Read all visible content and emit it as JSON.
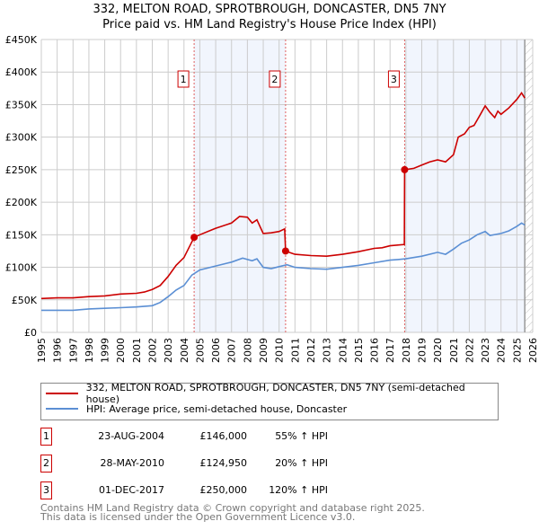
{
  "chart_data": {
    "type": "line",
    "title": "332, MELTON ROAD, SPROTBROUGH, DONCASTER, DN5 7NY",
    "subtitle": "Price paid vs. HM Land Registry's House Price Index (HPI)",
    "xlim": [
      1995,
      2026
    ],
    "ylim": [
      0,
      450000
    ],
    "x_ticks": [
      "1995",
      "1996",
      "1997",
      "1998",
      "1999",
      "2000",
      "2001",
      "2002",
      "2003",
      "2004",
      "2005",
      "2006",
      "2007",
      "2008",
      "2009",
      "2010",
      "2011",
      "2012",
      "2013",
      "2014",
      "2015",
      "2016",
      "2017",
      "2018",
      "2019",
      "2020",
      "2021",
      "2022",
      "2023",
      "2024",
      "2025",
      "2026"
    ],
    "y_ticks": [
      {
        "v": 0,
        "label": "£0"
      },
      {
        "v": 50000,
        "label": "£50K"
      },
      {
        "v": 100000,
        "label": "£100K"
      },
      {
        "v": 150000,
        "label": "£150K"
      },
      {
        "v": 200000,
        "label": "£200K"
      },
      {
        "v": 250000,
        "label": "£250K"
      },
      {
        "v": 300000,
        "label": "£300K"
      },
      {
        "v": 350000,
        "label": "£350K"
      },
      {
        "v": 400000,
        "label": "£400K"
      },
      {
        "v": 450000,
        "label": "£450K"
      }
    ],
    "grid": true,
    "data_end": 2025.5,
    "series": [
      {
        "name": "332, MELTON ROAD, SPROTBROUGH, DONCASTER, DN5 7NY (semi-detached house)",
        "color": "#cc0000",
        "x": [
          1995,
          1996,
          1997,
          1998,
          1999,
          2000,
          2001,
          2001.5,
          2002,
          2002.5,
          2003,
          2003.5,
          2004,
          2004.64,
          2005,
          2006,
          2007,
          2007.5,
          2008,
          2008.3,
          2008.6,
          2009,
          2009.5,
          2010,
          2010.35,
          2010.41,
          2011,
          2012,
          2013,
          2014,
          2015,
          2016,
          2016.5,
          2017,
          2017.9,
          2017.92,
          2018.5,
          2019,
          2019.5,
          2020,
          2020.5,
          2021,
          2021.3,
          2021.7,
          2022,
          2022.3,
          2022.7,
          2023,
          2023.3,
          2023.6,
          2023.8,
          2024,
          2024.5,
          2025,
          2025.3,
          2025.5
        ],
        "values": [
          52000,
          53000,
          53000,
          55000,
          56000,
          59000,
          60000,
          62000,
          66000,
          72000,
          86000,
          103000,
          115000,
          146000,
          150000,
          160000,
          168000,
          178000,
          177000,
          168000,
          173000,
          152000,
          153000,
          155000,
          159000,
          124950,
          120000,
          118000,
          117000,
          120000,
          124000,
          129000,
          130000,
          133000,
          135000,
          250000,
          252000,
          257000,
          262000,
          265000,
          262000,
          273000,
          300000,
          305000,
          315000,
          318000,
          335000,
          348000,
          338000,
          330000,
          340000,
          335000,
          345000,
          358000,
          368000,
          360000
        ]
      },
      {
        "name": "HPI: Average price, semi-detached house, Doncaster",
        "color": "#5b8fd4",
        "x": [
          1995,
          1996,
          1997,
          1998,
          1999,
          2000,
          2001,
          2002,
          2002.5,
          2003,
          2003.5,
          2004,
          2004.5,
          2005,
          2006,
          2007,
          2007.7,
          2008.3,
          2008.6,
          2009,
          2009.5,
          2010,
          2010.5,
          2011,
          2012,
          2013,
          2014,
          2015,
          2016,
          2017,
          2017.5,
          2018,
          2019,
          2020,
          2020.5,
          2021,
          2021.5,
          2022,
          2022.5,
          2023,
          2023.3,
          2024,
          2024.5,
          2025,
          2025.3,
          2025.5
        ],
        "values": [
          34000,
          34000,
          34000,
          36000,
          37000,
          38000,
          39000,
          41000,
          46000,
          55000,
          65000,
          72000,
          88000,
          96000,
          102000,
          108000,
          114000,
          110000,
          113000,
          100000,
          98000,
          101000,
          104000,
          100000,
          98000,
          97000,
          100000,
          103000,
          107000,
          111000,
          112000,
          113000,
          117000,
          123000,
          120000,
          128000,
          137000,
          142000,
          150000,
          155000,
          149000,
          152000,
          156000,
          163000,
          168000,
          165000
        ]
      }
    ],
    "sales": [
      {
        "label": "1",
        "x": 2004.64,
        "value": 146000,
        "date": "23-AUG-2004",
        "price": "£146,000",
        "hpi": "55% ↑ HPI"
      },
      {
        "label": "2",
        "x": 2010.41,
        "value": 124950,
        "date": "28-MAY-2010",
        "price": "£124,950",
        "hpi": "20% ↑ HPI"
      },
      {
        "label": "3",
        "x": 2017.92,
        "value": 250000,
        "date": "01-DEC-2017",
        "price": "£250,000",
        "hpi": "120% ↑ HPI"
      }
    ]
  },
  "footer": {
    "line1": "Contains HM Land Registry data © Crown copyright and database right 2025.",
    "line2": "This data is licensed under the Open Government Licence v3.0."
  }
}
